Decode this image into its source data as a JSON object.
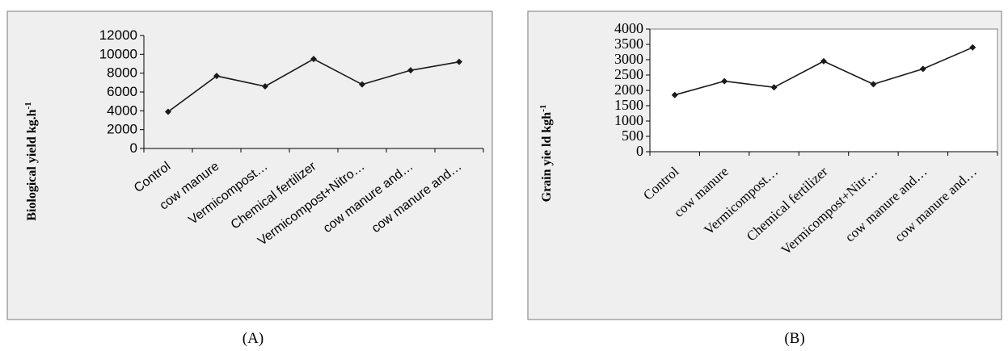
{
  "chart_data": [
    {
      "type": "line",
      "panel_label": "(A)",
      "ylabel": "Biological yield kg.h",
      "ylabel_sup": "-1",
      "categories": [
        "Control",
        "cow manure",
        "Vermicompost…",
        "Chemical fertilizer",
        "Vermicompost+Nitro…",
        "cow manure and…",
        "cow manure and…"
      ],
      "yticks": [
        "0",
        "2000",
        "4000",
        "6000",
        "8000",
        "10000",
        "12000"
      ],
      "ylim": [
        0,
        12000
      ],
      "series": [
        {
          "values": [
            3900,
            7700,
            6600,
            9500,
            6800,
            8300,
            9200
          ]
        }
      ],
      "grid": false,
      "legend": "none",
      "colors": {
        "line": "#1a1a1a",
        "frame": "#efefef"
      }
    },
    {
      "type": "line",
      "panel_label": "(B)",
      "ylabel": "Grain  yie ld kgh",
      "ylabel_sup": "-1",
      "categories": [
        "Control",
        "cow manure",
        "Vermicompost…",
        "Chemical fertilizer",
        "Vermicompost+Nitr…",
        "cow manure and…",
        "cow manure and…"
      ],
      "yticks": [
        "0",
        "500",
        "1000",
        "1500",
        "2000",
        "2500",
        "3000",
        "3500",
        "4000"
      ],
      "ylim": [
        0,
        4000
      ],
      "series": [
        {
          "values": [
            1850,
            2300,
            2100,
            2950,
            2200,
            2700,
            3400
          ]
        }
      ],
      "grid": false,
      "legend": "none",
      "colors": {
        "line": "#1a1a1a",
        "frame": "#efefef"
      }
    }
  ]
}
